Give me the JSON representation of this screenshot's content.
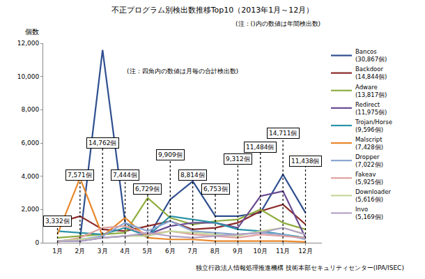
{
  "chart_data": {
    "type": "line",
    "title": "不正プログラム別検出数推移Top10（2013年1月～12月）",
    "subtitle": "(注：()内の数値は年間検出数)",
    "note": "(注：四角内の数値は月毎の合計検出数)",
    "source": "独立行政法人情報処理推進機構 技術本部セキュリティセンター(IPA/ISEC)",
    "y_label": "個数",
    "categories": [
      "1月",
      "2月",
      "3月",
      "4月",
      "5月",
      "6月",
      "7月",
      "8月",
      "9月",
      "10月",
      "11月",
      "12月"
    ],
    "series": [
      {
        "name": "Bancos",
        "total_label": "(30,867個)",
        "color": "#2e4f8f",
        "values": [
          100,
          200,
          11600,
          1200,
          300,
          2600,
          3700,
          1600,
          1600,
          1800,
          4100,
          1800
        ]
      },
      {
        "name": "Backdoor",
        "total_label": "(14,844個)",
        "color": "#8b2a2a",
        "values": [
          1200,
          1600,
          800,
          700,
          1000,
          1300,
          800,
          900,
          1200,
          1900,
          2300,
          1100
        ]
      },
      {
        "name": "Adware",
        "total_label": "(13,817個)",
        "color": "#8fad3f",
        "values": [
          300,
          400,
          500,
          600,
          2700,
          1500,
          1100,
          1300,
          1400,
          2000,
          1200,
          800
        ]
      },
      {
        "name": "Redirect",
        "total_label": "(11,975個)",
        "color": "#6a4a93",
        "values": [
          100,
          100,
          300,
          400,
          500,
          1000,
          1200,
          1200,
          900,
          2800,
          3100,
          300
        ]
      },
      {
        "name": "Trojan/Horse",
        "total_label": "(9,596個)",
        "color": "#2b93a8",
        "values": [
          700,
          600,
          500,
          900,
          400,
          1600,
          1400,
          1200,
          800,
          700,
          500,
          300
        ]
      },
      {
        "name": "Malscript",
        "total_label": "(7,428個)",
        "color": "#e8872a",
        "values": [
          500,
          3900,
          400,
          1500,
          300,
          200,
          200,
          100,
          100,
          100,
          100,
          50
        ]
      },
      {
        "name": "Dropper",
        "total_label": "(7,022個)",
        "color": "#8aa6d1",
        "values": [
          100,
          200,
          400,
          1200,
          700,
          1300,
          700,
          600,
          500,
          600,
          500,
          200
        ]
      },
      {
        "name": "Fakeav",
        "total_label": "(5,925個)",
        "color": "#e0a0a0",
        "values": [
          50,
          300,
          900,
          1000,
          500,
          700,
          500,
          400,
          300,
          500,
          400,
          300
        ]
      },
      {
        "name": "Downloader",
        "total_label": "(5,616個)",
        "color": "#c4d79b",
        "values": [
          100,
          200,
          300,
          400,
          400,
          700,
          600,
          500,
          400,
          700,
          900,
          500
        ]
      },
      {
        "name": "Invo",
        "total_label": "(5,169個)",
        "color": "#b3a2c7",
        "values": [
          100,
          100,
          300,
          400,
          600,
          400,
          300,
          400,
          500,
          600,
          900,
          500
        ]
      }
    ],
    "annotations": [
      {
        "category": "1月",
        "text": "3,332個"
      },
      {
        "category": "2月",
        "text": "7,571個"
      },
      {
        "category": "3月",
        "text": "14,762個"
      },
      {
        "category": "4月",
        "text": "7,444個"
      },
      {
        "category": "5月",
        "text": "6,729個"
      },
      {
        "category": "6月",
        "text": "9,909個"
      },
      {
        "category": "7月",
        "text": "8,814個"
      },
      {
        "category": "8月",
        "text": "6,753個"
      },
      {
        "category": "9月",
        "text": "9,312個"
      },
      {
        "category": "10月",
        "text": "11,484個"
      },
      {
        "category": "11月",
        "text": "14,711個"
      },
      {
        "category": "12月",
        "text": "11,438個"
      }
    ],
    "ylim": [
      0,
      12000
    ],
    "yticks": [
      0,
      {
        "value": 2000,
        "label": "2,000"
      },
      {
        "value": 4000,
        "label": "4,000"
      },
      {
        "value": 6000,
        "label": "6,000"
      },
      {
        "value": 8000,
        "label": "8,000"
      },
      {
        "value": 10000,
        "label": "10,000"
      },
      {
        "value": 12000,
        "label": "12,000"
      }
    ],
    "grid": false,
    "legend": "right"
  }
}
